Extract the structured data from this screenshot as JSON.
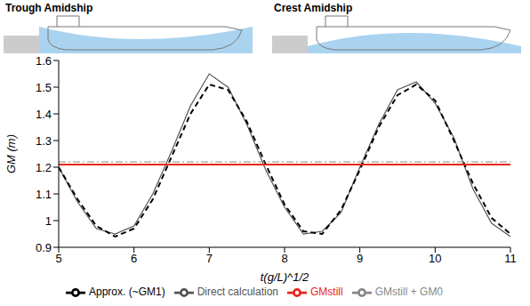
{
  "chart_data": {
    "type": "line",
    "annotations": [
      "Trough Amidship",
      "Crest Amidship"
    ],
    "x_label": "t(g/L)^1/2",
    "y_label": "GM (m)",
    "x": [
      5.0,
      5.25,
      5.5,
      5.75,
      6.0,
      6.25,
      6.5,
      6.75,
      7.0,
      7.25,
      7.5,
      7.75,
      8.0,
      8.25,
      8.5,
      8.75,
      9.0,
      9.25,
      9.5,
      9.75,
      10.0,
      10.25,
      10.5,
      10.75,
      11.0
    ],
    "series": [
      {
        "name": "Direct calculation",
        "color": "#555555",
        "line_style": "solid",
        "values": [
          1.2,
          1.07,
          0.97,
          0.95,
          0.98,
          1.1,
          1.26,
          1.43,
          1.55,
          1.5,
          1.36,
          1.19,
          1.05,
          0.95,
          0.96,
          1.03,
          1.2,
          1.36,
          1.49,
          1.52,
          1.44,
          1.31,
          1.12,
          0.99,
          0.94
        ]
      },
      {
        "name": "Approx. (~GM1)",
        "color": "#000000",
        "line_style": "dashed",
        "values": [
          1.2,
          1.08,
          0.98,
          0.94,
          0.97,
          1.08,
          1.24,
          1.4,
          1.51,
          1.49,
          1.37,
          1.21,
          1.06,
          0.96,
          0.95,
          1.04,
          1.19,
          1.35,
          1.47,
          1.51,
          1.45,
          1.3,
          1.14,
          1.01,
          0.95
        ]
      },
      {
        "name": "GMstill",
        "color": "#e8261c",
        "line_style": "solid",
        "values": [
          1.21,
          1.21,
          1.21,
          1.21,
          1.21,
          1.21,
          1.21,
          1.21,
          1.21,
          1.21,
          1.21,
          1.21,
          1.21,
          1.21,
          1.21,
          1.21,
          1.21,
          1.21,
          1.21,
          1.21,
          1.21,
          1.21,
          1.21,
          1.21,
          1.21
        ]
      },
      {
        "name": "GMstill + GM0",
        "color": "#888888",
        "line_style": "dashdot",
        "values": [
          1.22,
          1.22,
          1.22,
          1.22,
          1.22,
          1.22,
          1.22,
          1.22,
          1.22,
          1.22,
          1.22,
          1.22,
          1.22,
          1.22,
          1.22,
          1.22,
          1.22,
          1.22,
          1.22,
          1.22,
          1.22,
          1.22,
          1.22,
          1.22,
          1.22
        ]
      }
    ],
    "xlim": [
      5,
      11
    ],
    "xticks": [
      5,
      6,
      7,
      8,
      9,
      10,
      11
    ],
    "ylim": [
      0.9,
      1.6
    ],
    "yticks": [
      0.9,
      1,
      1.1,
      1.2,
      1.3,
      1.4,
      1.5,
      1.6
    ],
    "legend": "bottom"
  }
}
